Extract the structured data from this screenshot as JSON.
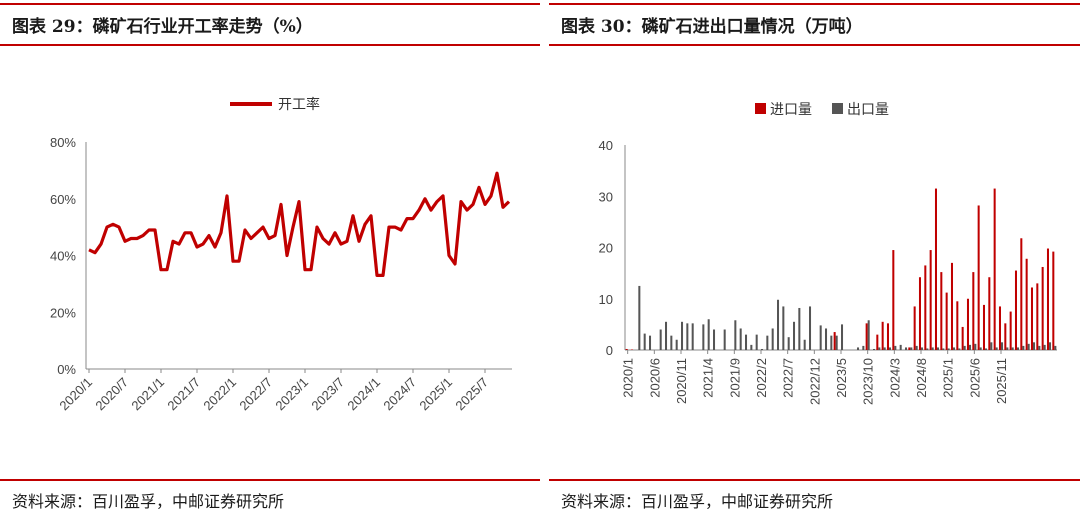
{
  "left": {
    "title": "图表 29：磷矿石行业开工率走势（%）",
    "source": "资料来源：百川盈孚，中邮证券研究所",
    "chart_data": {
      "type": "line",
      "title": "图表 29：磷矿石行业开工率走势（%）",
      "xlabel": "",
      "ylabel": "",
      "ylim": [
        0,
        80
      ],
      "yticks": [
        "0%",
        "20%",
        "40%",
        "60%",
        "80%"
      ],
      "xticks": [
        "2020/1",
        "2020/7",
        "2021/1",
        "2021/7",
        "2022/1",
        "2022/7",
        "2023/1",
        "2023/7",
        "2024/1",
        "2024/7",
        "2025/1",
        "2025/7"
      ],
      "legend": "top-center",
      "color": "#c00000",
      "series": [
        {
          "name": "开工率",
          "values": [
            42,
            41,
            44,
            50,
            51,
            50,
            45,
            46,
            46,
            47,
            49,
            49,
            35,
            35,
            45,
            44,
            48,
            48,
            43,
            44,
            47,
            43,
            48,
            61,
            38,
            38,
            49,
            46,
            48,
            50,
            46,
            47,
            58,
            40,
            50,
            59,
            35,
            35,
            50,
            46,
            44,
            48,
            44,
            45,
            54,
            45,
            51,
            54,
            33,
            33,
            50,
            50,
            49,
            53,
            53,
            56,
            60,
            56,
            59,
            61,
            40,
            37,
            59,
            56,
            58,
            64,
            58,
            61,
            69,
            57,
            59
          ]
        }
      ]
    }
  },
  "right": {
    "title": "图表 30：磷矿石进出口量情况（万吨）",
    "source": "资料来源：百川盈孚，中邮证券研究所",
    "chart_data": {
      "type": "bar",
      "title": "图表 30：磷矿石进出口量情况（万吨）",
      "xlabel": "",
      "ylabel": "",
      "ylim": [
        0,
        40
      ],
      "yticks": [
        "0",
        "10",
        "20",
        "30",
        "40"
      ],
      "xticks": [
        "2020/1",
        "2020/6",
        "2020/11",
        "2021/4",
        "2021/9",
        "2022/2",
        "2022/7",
        "2022/12",
        "2023/5",
        "2023/10",
        "2024/3",
        "2024/8",
        "2025/1",
        "2025/6",
        "2025/11"
      ],
      "legend": "top-center",
      "series": [
        {
          "name": "进口量",
          "color": "#c00000",
          "values": [
            0.2,
            0.1,
            0,
            0,
            0,
            0,
            0,
            0,
            0,
            0,
            0,
            0,
            0,
            0,
            0,
            0,
            0,
            0,
            0,
            0,
            0,
            0,
            0,
            0,
            0,
            0,
            0,
            0,
            0,
            0,
            0,
            0,
            0,
            0,
            0,
            0,
            0,
            0,
            0,
            3.5,
            0,
            0,
            0,
            0,
            0,
            5.2,
            0,
            3,
            5.5,
            5.2,
            19.5,
            0,
            0,
            0.5,
            8.5,
            14.2,
            16.5,
            19.5,
            31.5,
            15.2,
            11.2,
            17,
            9.5,
            4.5,
            10,
            15.2,
            28.2,
            8.8,
            14.2,
            31.5,
            8.5,
            5.2,
            7.5,
            15.5,
            21.8,
            17.8,
            12.2,
            13,
            16.2,
            19.8,
            19.2
          ]
        },
        {
          "name": "出口量",
          "color": "#555555",
          "values": [
            0,
            0,
            12.5,
            3.2,
            2.8,
            0,
            4,
            5.5,
            2.8,
            2,
            5.5,
            5.2,
            5.2,
            0,
            5,
            6,
            4,
            0,
            4,
            0,
            5.8,
            4.2,
            3,
            1,
            3,
            0.2,
            2.8,
            4.2,
            9.8,
            8.5,
            2.5,
            5.5,
            8.2,
            2,
            8.5,
            0,
            4.8,
            4.2,
            2.8,
            2.8,
            5,
            0,
            0,
            0.5,
            0.8,
            5.8,
            0.2,
            0.5,
            0.5,
            0.5,
            0.8,
            1,
            0.5,
            0.5,
            0.8,
            0.5,
            0.3,
            0.5,
            0.5,
            0.3,
            0.3,
            0.5,
            0.3,
            0.8,
            1,
            1.2,
            0.5,
            0.3,
            1.5,
            0.5,
            1.5,
            0.5,
            0.5,
            0.5,
            0.8,
            1.2,
            1.5,
            0.8,
            1,
            1.5,
            0.8
          ]
        }
      ]
    }
  }
}
